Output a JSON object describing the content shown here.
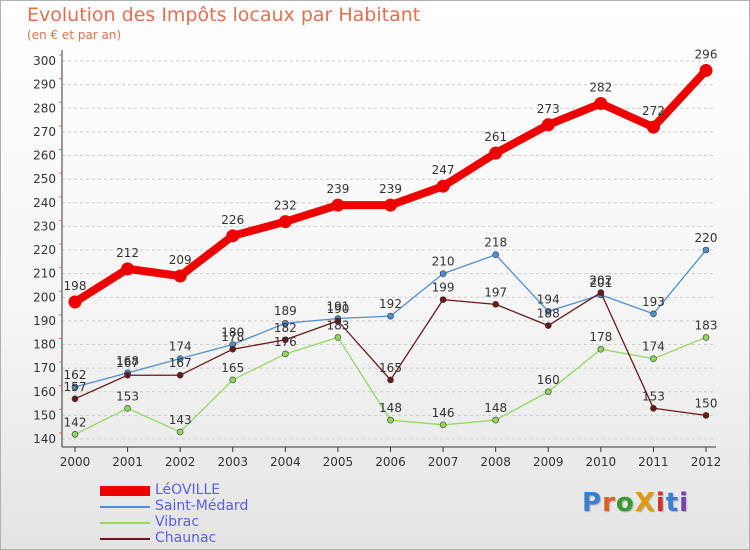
{
  "header": {
    "title": "Evolution des Impôts locaux par Habitant",
    "subtitle": "(en € et par an)"
  },
  "logo": {
    "text": "ProXiti"
  },
  "colors": {
    "title": "#e07050",
    "legend_text": "#5a5fe0",
    "grid": "#cccccc",
    "leoville": "#ee0000",
    "saint_medard": "#4f8fd0",
    "vibrac": "#90d860",
    "chaunac": "#6a1818"
  },
  "chart_data": {
    "type": "line",
    "title": "Evolution des Impôts locaux par Habitant",
    "subtitle": "(en € et par an)",
    "xlabel": "",
    "ylabel": "",
    "categories": [
      "2000",
      "2001",
      "2002",
      "2003",
      "2004",
      "2005",
      "2006",
      "2007",
      "2008",
      "2009",
      "2010",
      "2011",
      "2012"
    ],
    "ylim": [
      140,
      300
    ],
    "yticks": [
      140,
      150,
      160,
      170,
      180,
      190,
      200,
      210,
      220,
      230,
      240,
      250,
      260,
      270,
      280,
      290,
      300
    ],
    "grid": "horizontal dashed",
    "legend_position": "bottom-left",
    "series": [
      {
        "name": "LéOVILLE",
        "color": "#ee0000",
        "emphasis": true,
        "values": [
          198,
          212,
          209,
          226,
          232,
          239,
          239,
          247,
          261,
          273,
          282,
          272,
          296
        ]
      },
      {
        "name": "Saint-Médard",
        "color": "#4f8fd0",
        "values": [
          162,
          168,
          174,
          180,
          189,
          191,
          192,
          210,
          218,
          194,
          201,
          193,
          220
        ]
      },
      {
        "name": "Vibrac",
        "color": "#90d860",
        "values": [
          142,
          153,
          143,
          165,
          176,
          183,
          148,
          146,
          148,
          160,
          178,
          174,
          183
        ]
      },
      {
        "name": "Chaunac",
        "color": "#6a1818",
        "values": [
          157,
          167,
          167,
          178,
          182,
          190,
          165,
          199,
          197,
          188,
          202,
          153,
          150
        ]
      }
    ]
  }
}
